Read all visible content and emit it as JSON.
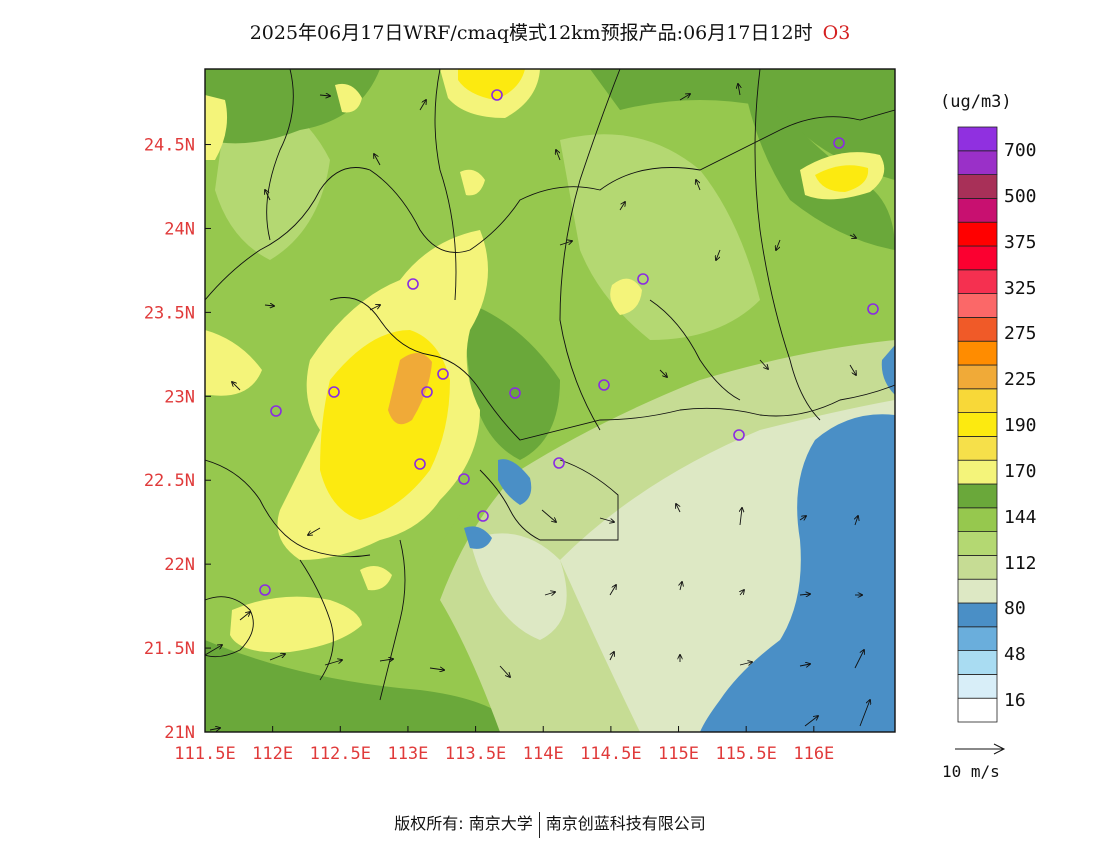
{
  "title": {
    "text": "2025年06月17日WRF/cmaq模式12km预报产品:06月17日12时",
    "species": "O3"
  },
  "map": {
    "lat_labels": [
      "24.5N",
      "24N",
      "23.5N",
      "23N",
      "22.5N",
      "22N",
      "21.5N",
      "21N"
    ],
    "lat_values": [
      24.5,
      24.0,
      23.5,
      23.0,
      22.5,
      22.0,
      21.5,
      21.0
    ],
    "lon_labels": [
      "111.5E",
      "112E",
      "112.5E",
      "113E",
      "113.5E",
      "114E",
      "114.5E",
      "115E",
      "115.5E",
      "116E"
    ],
    "lon_values": [
      111.5,
      112.0,
      112.5,
      113.0,
      113.5,
      114.0,
      114.5,
      115.0,
      115.5,
      116.0
    ],
    "lon_range": [
      111.5,
      116.6
    ],
    "lat_range": [
      21.0,
      24.95
    ],
    "label_color": "#e03a3a"
  },
  "colorbar": {
    "unit": "(ug/m3)",
    "labels": [
      "700",
      "500",
      "375",
      "325",
      "275",
      "225",
      "190",
      "170",
      "144",
      "112",
      "80",
      "48",
      "16"
    ],
    "colors": [
      "#ffffff",
      "#d8eef8",
      "#a9dcf2",
      "#6aaedc",
      "#4a8fc6",
      "#dde8c4",
      "#c6dc94",
      "#b4d872",
      "#96c84e",
      "#6aa83a",
      "#f4f47a",
      "#f6e04a",
      "#fcea10",
      "#f8d838",
      "#f0aa38",
      "#ff8c00",
      "#f05a28",
      "#fb6868",
      "#f53050",
      "#fb0030",
      "#ff0000",
      "#c81070",
      "#a83058",
      "#9a30c8",
      "#9030e0"
    ]
  },
  "vector": {
    "label": "10 m/s"
  },
  "footer": {
    "left": "版权所有: 南京大学",
    "right": "南京创蓝科技有限公司"
  }
}
